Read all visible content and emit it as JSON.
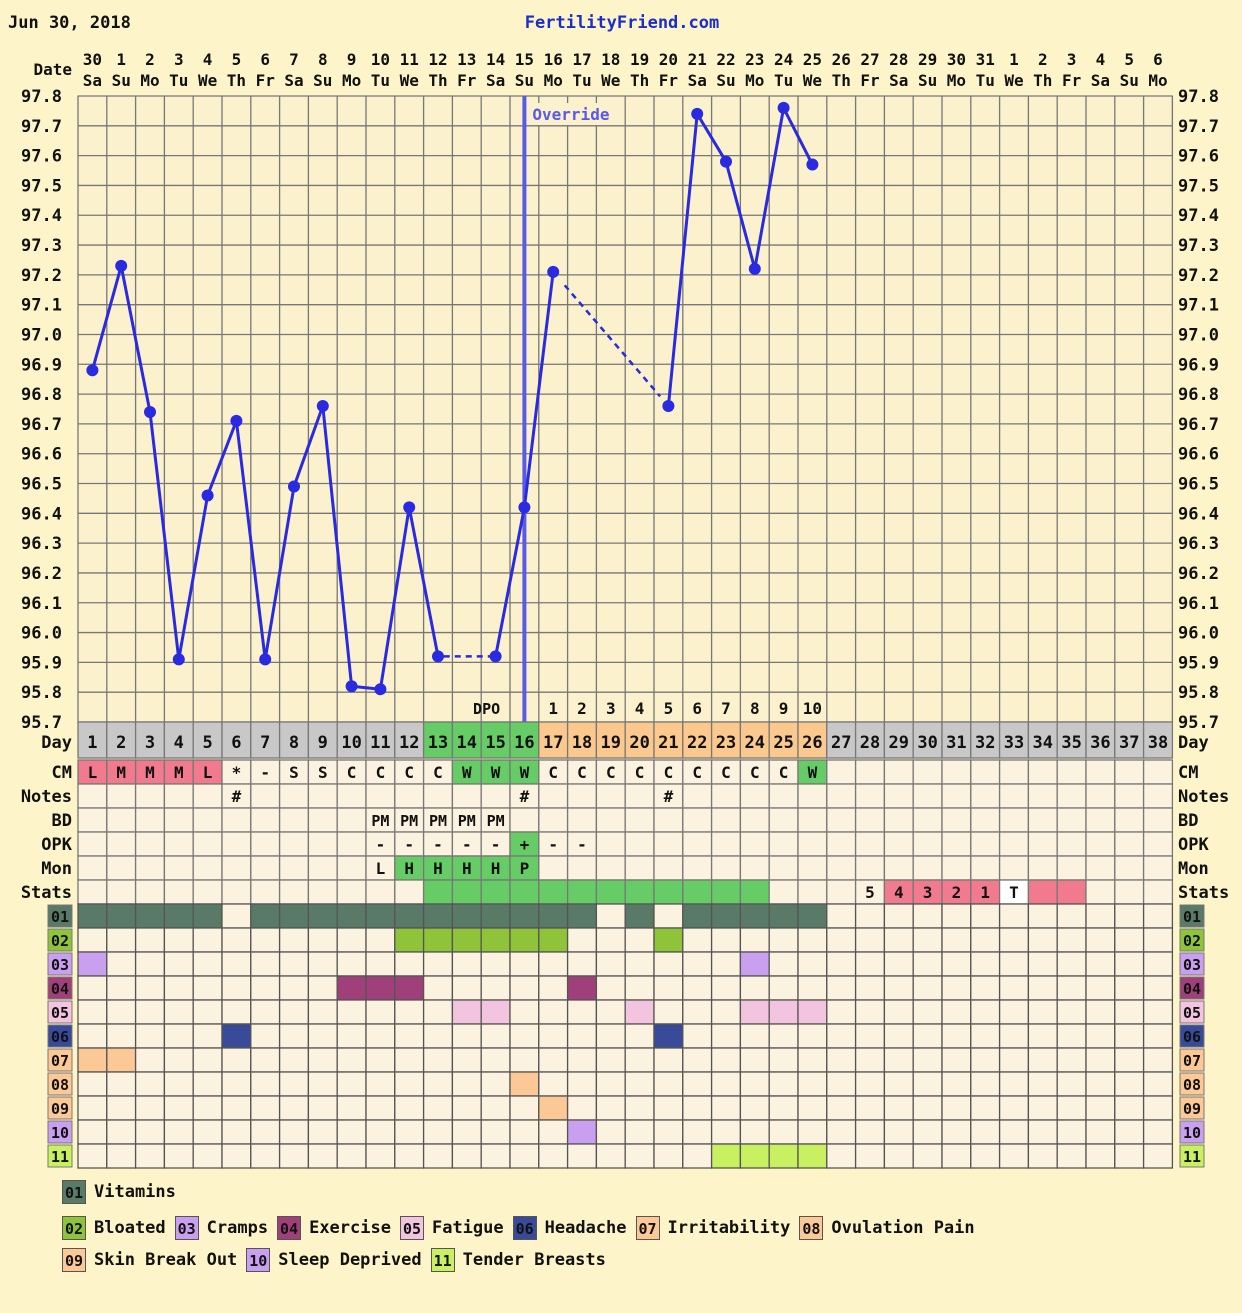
{
  "header": {
    "date": "Jun 30, 2018",
    "site": "FertilityFriend.com"
  },
  "labels": {
    "date": "Date",
    "day": "Day",
    "override": "Override",
    "dpo": "DPO"
  },
  "dates": [
    "30",
    "1",
    "2",
    "3",
    "4",
    "5",
    "6",
    "7",
    "8",
    "9",
    "10",
    "11",
    "12",
    "13",
    "14",
    "15",
    "16",
    "17",
    "18",
    "19",
    "20",
    "21",
    "22",
    "23",
    "24",
    "25",
    "26",
    "27",
    "28",
    "29",
    "30",
    "31",
    "1",
    "2",
    "3",
    "4",
    "5",
    "6"
  ],
  "weekdays": [
    "Sa",
    "Su",
    "Mo",
    "Tu",
    "We",
    "Th",
    "Fr",
    "Sa",
    "Su",
    "Mo",
    "Tu",
    "We",
    "Th",
    "Fr",
    "Sa",
    "Su",
    "Mo",
    "Tu",
    "We",
    "Th",
    "Fr",
    "Sa",
    "Su",
    "Mo",
    "Tu",
    "We",
    "Th",
    "Fr",
    "Sa",
    "Su",
    "Mo",
    "Tu",
    "We",
    "Th",
    "Fr",
    "Sa",
    "Su",
    "Mo"
  ],
  "colors": {
    "line": "#2a2ae0",
    "override": "#5a5ae8",
    "pink": "#f27a8e",
    "green": "#66cc66",
    "orange": "#fbc98e",
    "gray": "#c8c8c8",
    "white": "#ffffff",
    "cell": "#fcf2e0",
    "site": "#1a2ecc"
  },
  "chart_data": {
    "type": "line",
    "x_label": "Day",
    "ylim": [
      95.7,
      97.8
    ],
    "y_ticks": [
      "97.8",
      "97.7",
      "97.6",
      "97.5",
      "97.4",
      "97.3",
      "97.2",
      "97.1",
      "97.0",
      "96.9",
      "96.8",
      "96.7",
      "96.6",
      "96.5",
      "96.4",
      "96.3",
      "96.2",
      "96.1",
      "96.0",
      "95.9",
      "95.8",
      "95.7"
    ],
    "days": [
      "1",
      "2",
      "3",
      "4",
      "5",
      "6",
      "7",
      "8",
      "9",
      "10",
      "11",
      "12",
      "13",
      "14",
      "15",
      "16",
      "17",
      "18",
      "19",
      "20",
      "21",
      "22",
      "23",
      "24",
      "25",
      "26",
      "27",
      "28",
      "29",
      "30",
      "31",
      "32",
      "33",
      "34",
      "35",
      "36",
      "37",
      "38"
    ],
    "temps": [
      96.88,
      97.23,
      96.74,
      95.91,
      96.46,
      96.71,
      95.91,
      96.49,
      96.76,
      95.82,
      95.81,
      96.42,
      95.92,
      null,
      95.92,
      96.42,
      97.21,
      null,
      null,
      null,
      96.76,
      97.74,
      97.58,
      97.22,
      97.76,
      97.57,
      null,
      null,
      null,
      null,
      null,
      null,
      null,
      null,
      null,
      null,
      null,
      null
    ],
    "dotted_gaps": [
      [
        13,
        15
      ],
      [
        17,
        21
      ]
    ],
    "override_day": 16,
    "dpo": [
      {
        "day": 17,
        "text": "1"
      },
      {
        "day": 18,
        "text": "2"
      },
      {
        "day": 19,
        "text": "3"
      },
      {
        "day": 20,
        "text": "4"
      },
      {
        "day": 21,
        "text": "5"
      },
      {
        "day": 22,
        "text": "6"
      },
      {
        "day": 23,
        "text": "7"
      },
      {
        "day": 24,
        "text": "8"
      },
      {
        "day": 25,
        "text": "9"
      },
      {
        "day": 26,
        "text": "10"
      }
    ],
    "day_colors": [
      "gray",
      "gray",
      "gray",
      "gray",
      "gray",
      "gray",
      "gray",
      "gray",
      "gray",
      "gray",
      "gray",
      "gray",
      "green",
      "green",
      "green",
      "green",
      "orange",
      "orange",
      "orange",
      "orange",
      "orange",
      "orange",
      "orange",
      "orange",
      "orange",
      "orange",
      "gray",
      "gray",
      "gray",
      "gray",
      "gray",
      "gray",
      "gray",
      "gray",
      "gray",
      "gray",
      "gray",
      "gray"
    ]
  },
  "rows": [
    {
      "key": "cm",
      "label": "CM",
      "cells": [
        {
          "day": 1,
          "text": "L",
          "color": "pink"
        },
        {
          "day": 2,
          "text": "M",
          "color": "pink"
        },
        {
          "day": 3,
          "text": "M",
          "color": "pink"
        },
        {
          "day": 4,
          "text": "M",
          "color": "pink"
        },
        {
          "day": 5,
          "text": "L",
          "color": "pink"
        },
        {
          "day": 6,
          "text": "*"
        },
        {
          "day": 7,
          "text": "-"
        },
        {
          "day": 8,
          "text": "S"
        },
        {
          "day": 9,
          "text": "S"
        },
        {
          "day": 10,
          "text": "C"
        },
        {
          "day": 11,
          "text": "C"
        },
        {
          "day": 12,
          "text": "C"
        },
        {
          "day": 13,
          "text": "C"
        },
        {
          "day": 14,
          "text": "W",
          "color": "green"
        },
        {
          "day": 15,
          "text": "W",
          "color": "green"
        },
        {
          "day": 16,
          "text": "W",
          "color": "green"
        },
        {
          "day": 17,
          "text": "C"
        },
        {
          "day": 18,
          "text": "C"
        },
        {
          "day": 19,
          "text": "C"
        },
        {
          "day": 20,
          "text": "C"
        },
        {
          "day": 21,
          "text": "C"
        },
        {
          "day": 22,
          "text": "C"
        },
        {
          "day": 23,
          "text": "C"
        },
        {
          "day": 24,
          "text": "C"
        },
        {
          "day": 25,
          "text": "C"
        },
        {
          "day": 26,
          "text": "W",
          "color": "green"
        }
      ]
    },
    {
      "key": "notes",
      "label": "Notes",
      "cells": [
        {
          "day": 6,
          "text": "#"
        },
        {
          "day": 16,
          "text": "#"
        },
        {
          "day": 21,
          "text": "#"
        }
      ]
    },
    {
      "key": "bd",
      "label": "BD",
      "cells": [
        {
          "day": 11,
          "text": "PM"
        },
        {
          "day": 12,
          "text": "PM"
        },
        {
          "day": 13,
          "text": "PM"
        },
        {
          "day": 14,
          "text": "PM"
        },
        {
          "day": 15,
          "text": "PM"
        }
      ]
    },
    {
      "key": "opk",
      "label": "OPK",
      "cells": [
        {
          "day": 11,
          "text": "-"
        },
        {
          "day": 12,
          "text": "-"
        },
        {
          "day": 13,
          "text": "-"
        },
        {
          "day": 14,
          "text": "-"
        },
        {
          "day": 15,
          "text": "-"
        },
        {
          "day": 16,
          "text": "+",
          "color": "green"
        },
        {
          "day": 17,
          "text": "-"
        },
        {
          "day": 18,
          "text": "-"
        }
      ]
    },
    {
      "key": "mon",
      "label": "Mon",
      "cells": [
        {
          "day": 11,
          "text": "L"
        },
        {
          "day": 12,
          "text": "H",
          "color": "green"
        },
        {
          "day": 13,
          "text": "H",
          "color": "green"
        },
        {
          "day": 14,
          "text": "H",
          "color": "green"
        },
        {
          "day": 15,
          "text": "H",
          "color": "green"
        },
        {
          "day": 16,
          "text": "P",
          "color": "green"
        }
      ]
    },
    {
      "key": "stats",
      "label": "Stats",
      "cells": [
        {
          "day": 13,
          "text": "",
          "color": "green"
        },
        {
          "day": 14,
          "text": "",
          "color": "green"
        },
        {
          "day": 15,
          "text": "",
          "color": "green"
        },
        {
          "day": 16,
          "text": "",
          "color": "green"
        },
        {
          "day": 17,
          "text": "",
          "color": "green"
        },
        {
          "day": 18,
          "text": "",
          "color": "green"
        },
        {
          "day": 19,
          "text": "",
          "color": "green"
        },
        {
          "day": 20,
          "text": "",
          "color": "green"
        },
        {
          "day": 21,
          "text": "",
          "color": "green"
        },
        {
          "day": 22,
          "text": "",
          "color": "green"
        },
        {
          "day": 23,
          "text": "",
          "color": "green"
        },
        {
          "day": 24,
          "text": "",
          "color": "green"
        },
        {
          "day": 28,
          "text": "5"
        },
        {
          "day": 29,
          "text": "4",
          "color": "pink"
        },
        {
          "day": 30,
          "text": "3",
          "color": "pink"
        },
        {
          "day": 31,
          "text": "2",
          "color": "pink"
        },
        {
          "day": 32,
          "text": "1",
          "color": "pink"
        },
        {
          "day": 33,
          "text": "T",
          "color": "white"
        },
        {
          "day": 34,
          "text": "",
          "color": "pink"
        },
        {
          "day": 35,
          "text": "",
          "color": "pink"
        }
      ]
    }
  ],
  "symptoms": [
    {
      "code": "01",
      "name": "Vitamins",
      "color": "#5a7a68",
      "days": [
        1,
        2,
        3,
        4,
        5,
        7,
        8,
        9,
        10,
        11,
        12,
        13,
        14,
        15,
        16,
        17,
        18,
        20,
        22,
        23,
        24,
        25,
        26
      ]
    },
    {
      "code": "02",
      "name": "Bloated",
      "color": "#8fc43a",
      "days": [
        12,
        13,
        14,
        15,
        16,
        17,
        21
      ]
    },
    {
      "code": "03",
      "name": "Cramps",
      "color": "#c9a0f0",
      "days": [
        1,
        24
      ]
    },
    {
      "code": "04",
      "name": "Exercise",
      "color": "#a0407a",
      "days": [
        10,
        11,
        12,
        18
      ]
    },
    {
      "code": "05",
      "name": "Fatigue",
      "color": "#f2c4e0",
      "days": [
        14,
        15,
        20,
        24,
        25,
        26
      ]
    },
    {
      "code": "06",
      "name": "Headache",
      "color": "#3a4a9a",
      "days": [
        6,
        21
      ]
    },
    {
      "code": "07",
      "name": "Irritability",
      "color": "#fbc896",
      "days": [
        1,
        2
      ]
    },
    {
      "code": "08",
      "name": "Ovulation Pain",
      "color": "#fbc896",
      "days": [
        16
      ]
    },
    {
      "code": "09",
      "name": "Skin Break Out",
      "color": "#fbc896",
      "days": [
        17
      ]
    },
    {
      "code": "10",
      "name": "Sleep Deprived",
      "color": "#c9a0f0",
      "days": [
        18
      ]
    },
    {
      "code": "11",
      "name": "Tender Breasts",
      "color": "#c8f060",
      "days": [
        23,
        24,
        25,
        26
      ]
    }
  ],
  "legend_rows": [
    [
      0
    ],
    [
      1,
      2,
      3,
      4,
      5,
      6,
      7
    ],
    [
      8,
      9,
      10
    ]
  ]
}
